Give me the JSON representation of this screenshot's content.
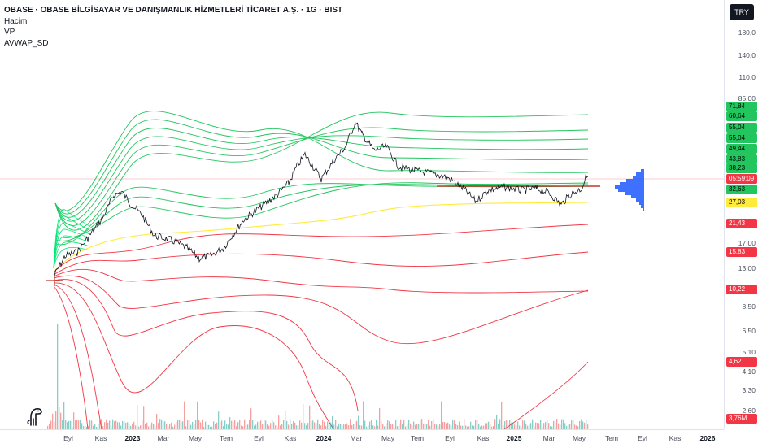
{
  "legend": {
    "title": "OBASE · OBASE BİLGİSAYAR VE DANIŞMANLIK HİZMETLERİ TİCARET A.Ş. · 1G · BIST",
    "indicators": [
      "Hacim",
      "VP",
      "AVWAP_SD"
    ]
  },
  "currency_button": "TRY",
  "price_ticks": [
    "180,0",
    "140,0",
    "110,0",
    "85,00",
    "17,00",
    "13,00",
    "8,50",
    "6,50",
    "5,10",
    "4,10",
    "3,30",
    "2,60"
  ],
  "price_badges": [
    {
      "text": "71,84",
      "bg": "#22c55e",
      "fg": "#000000"
    },
    {
      "text": "60,64",
      "bg": "#22c55e",
      "fg": "#000000"
    },
    {
      "text": "55,04",
      "bg": "#22c55e",
      "fg": "#000000"
    },
    {
      "text": "55,04",
      "bg": "#22c55e",
      "fg": "#000000"
    },
    {
      "text": "49,44",
      "bg": "#22c55e",
      "fg": "#000000"
    },
    {
      "text": "43,83",
      "bg": "#22c55e",
      "fg": "#000000"
    },
    {
      "text": "38,23",
      "bg": "#22c55e",
      "fg": "#000000"
    },
    {
      "text": "05:59:09",
      "bg": "#f23645",
      "fg": "#ffffff"
    },
    {
      "text": "32,63",
      "bg": "#22c55e",
      "fg": "#000000"
    },
    {
      "text": "27,03",
      "bg": "#ffeb3b",
      "fg": "#000000"
    },
    {
      "text": "21,43",
      "bg": "#f23645",
      "fg": "#ffffff"
    },
    {
      "text": "15,83",
      "bg": "#f23645",
      "fg": "#ffffff"
    },
    {
      "text": "10,22",
      "bg": "#f23645",
      "fg": "#ffffff"
    },
    {
      "text": "4,62",
      "bg": "#f23645",
      "fg": "#ffffff"
    },
    {
      "text": "3,76M",
      "bg": "#f23645",
      "fg": "#ffffff"
    }
  ],
  "time_ticks": [
    "Eyl",
    "Kas",
    "2023",
    "Mar",
    "May",
    "Tem",
    "Eyl",
    "Kas",
    "2024",
    "Mar",
    "May",
    "Tem",
    "Eyl",
    "Kas",
    "2025",
    "Mar",
    "May",
    "Tem",
    "Eyl",
    "Kas",
    "2026"
  ],
  "colors": {
    "upper_band": "#22c55e",
    "lower_band": "#f23645",
    "vwap": "#ffeb3b",
    "candle": "#131722",
    "volume_profile": "#2962ff",
    "horizontal_line": "#c0392b"
  },
  "icons": {
    "logo": "tradingview-dino-icon"
  }
}
